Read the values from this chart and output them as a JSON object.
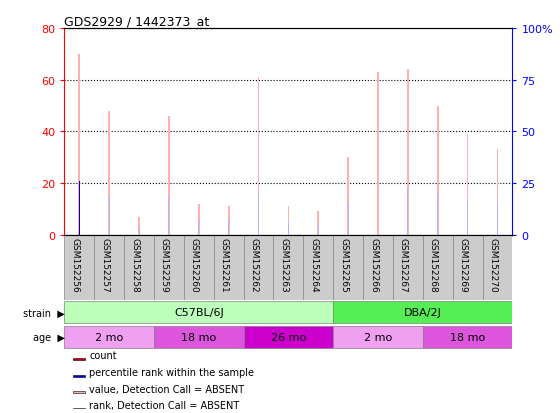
{
  "title": "GDS2929 / 1442373_at",
  "samples": [
    "GSM152256",
    "GSM152257",
    "GSM152258",
    "GSM152259",
    "GSM152260",
    "GSM152261",
    "GSM152262",
    "GSM152263",
    "GSM152264",
    "GSM152265",
    "GSM152266",
    "GSM152267",
    "GSM152268",
    "GSM152269",
    "GSM152270"
  ],
  "count_values": [
    70,
    48,
    7,
    46,
    12,
    11,
    61,
    11,
    9,
    30,
    63,
    64,
    50,
    39,
    33
  ],
  "rank_values": [
    26,
    19,
    3,
    18,
    7,
    7,
    20,
    6,
    5,
    16,
    22,
    22,
    20,
    17,
    16
  ],
  "count_absent": [
    true,
    true,
    true,
    true,
    true,
    true,
    true,
    true,
    true,
    true,
    true,
    true,
    true,
    true,
    true
  ],
  "rank_absent": [
    false,
    true,
    true,
    true,
    true,
    true,
    true,
    true,
    true,
    true,
    true,
    true,
    true,
    true,
    true
  ],
  "ylim_left": [
    0,
    80
  ],
  "ylim_right": [
    0,
    100
  ],
  "yticks_left": [
    0,
    20,
    40,
    60,
    80
  ],
  "yticks_right": [
    0,
    25,
    50,
    75,
    100
  ],
  "yticklabels_right": [
    "0",
    "25",
    "50",
    "75",
    "100%"
  ],
  "color_count": "#cc0000",
  "color_rank": "#0000cc",
  "color_count_absent": "#ffb0b0",
  "color_rank_absent": "#b0b0ff",
  "strain_groups": [
    {
      "label": "C57BL/6J",
      "start": 0,
      "end": 9,
      "color": "#bbffbb"
    },
    {
      "label": "DBA/2J",
      "start": 9,
      "end": 15,
      "color": "#55ee55"
    }
  ],
  "age_groups": [
    {
      "label": "2 mo",
      "start": 0,
      "end": 3,
      "color": "#f0a0f0"
    },
    {
      "label": "18 mo",
      "start": 3,
      "end": 6,
      "color": "#dd55dd"
    },
    {
      "label": "26 mo",
      "start": 6,
      "end": 9,
      "color": "#cc00cc"
    },
    {
      "label": "2 mo",
      "start": 9,
      "end": 12,
      "color": "#f0a0f0"
    },
    {
      "label": "18 mo",
      "start": 12,
      "end": 15,
      "color": "#dd55dd"
    }
  ],
  "legend_items": [
    {
      "label": "count",
      "color": "#cc0000"
    },
    {
      "label": "percentile rank within the sample",
      "color": "#0000cc"
    },
    {
      "label": "value, Detection Call = ABSENT",
      "color": "#ffb0b0"
    },
    {
      "label": "rank, Detection Call = ABSENT",
      "color": "#b0b0ff"
    }
  ],
  "bar_width": 0.06,
  "tick_label_box_color": "#cccccc",
  "tick_label_box_edge": "#888888"
}
